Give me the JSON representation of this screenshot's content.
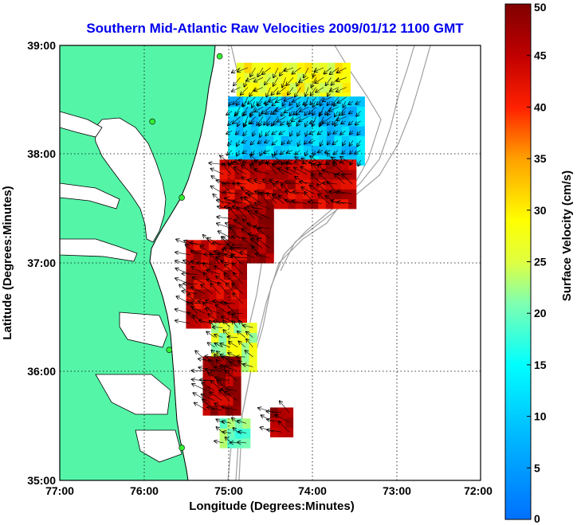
{
  "title": "Southern Mid-Atlantic Raw Velocities 2009/01/12 1100 GMT",
  "x_axis": {
    "label": "Longitude (Degrees:Minutes)",
    "ticks": [
      "77:00",
      "76:00",
      "75:00",
      "74:00",
      "73:00",
      "72:00"
    ]
  },
  "y_axis": {
    "label": "Latitude (Degrees:Minutes)",
    "ticks": [
      "39:00",
      "38:00",
      "37:00",
      "36:00",
      "35:00"
    ]
  },
  "colorbar": {
    "label": "Surface Velocity (cm/s)",
    "ticks": [
      "50",
      "45",
      "40",
      "35",
      "30",
      "25",
      "20",
      "15",
      "10",
      "5",
      "0"
    ],
    "min": 0,
    "max": 50,
    "colormap": "jet"
  },
  "colors": {
    "land": "#55f5a8",
    "coastline": "#000000",
    "bathymetry": "#a0a0a0",
    "station": "#33ee33",
    "title": "#0000ee"
  },
  "chart_data": {
    "type": "heatmap",
    "extent": {
      "lon": [
        -77,
        -72
      ],
      "lat": [
        35,
        39
      ]
    },
    "grid": "dotted",
    "regions": [
      {
        "lon": [
          -74.9,
          -73.6
        ],
        "lat": [
          38.3,
          38.8
        ],
        "speed": 28
      },
      {
        "lon": [
          -75.0,
          -73.4
        ],
        "lat": [
          37.9,
          38.5
        ],
        "speed": 10
      },
      {
        "lon": [
          -75.1,
          -73.5
        ],
        "lat": [
          37.5,
          37.95
        ],
        "speed": 45
      },
      {
        "lon": [
          -75.0,
          -74.5
        ],
        "lat": [
          37.0,
          37.5
        ],
        "speed": 48
      },
      {
        "lon": [
          -75.5,
          -74.8
        ],
        "lat": [
          36.4,
          37.2
        ],
        "speed": 45
      },
      {
        "lon": [
          -75.2,
          -74.7
        ],
        "lat": [
          36.0,
          36.45
        ],
        "speed": 25
      },
      {
        "lon": [
          -75.3,
          -74.9
        ],
        "lat": [
          35.6,
          36.1
        ],
        "speed": 47
      },
      {
        "lon": [
          -75.1,
          -74.8
        ],
        "lat": [
          35.3,
          35.5
        ],
        "speed": 20
      },
      {
        "lon": [
          -74.5,
          -74.3
        ],
        "lat": [
          35.4,
          35.6
        ],
        "speed": 48
      }
    ],
    "stations": [
      {
        "lon": -75.1,
        "lat": 38.9
      },
      {
        "lon": -75.9,
        "lat": 38.3
      },
      {
        "lon": -75.55,
        "lat": 37.6
      },
      {
        "lon": -75.7,
        "lat": 36.2
      },
      {
        "lon": -75.55,
        "lat": 35.3
      }
    ]
  }
}
